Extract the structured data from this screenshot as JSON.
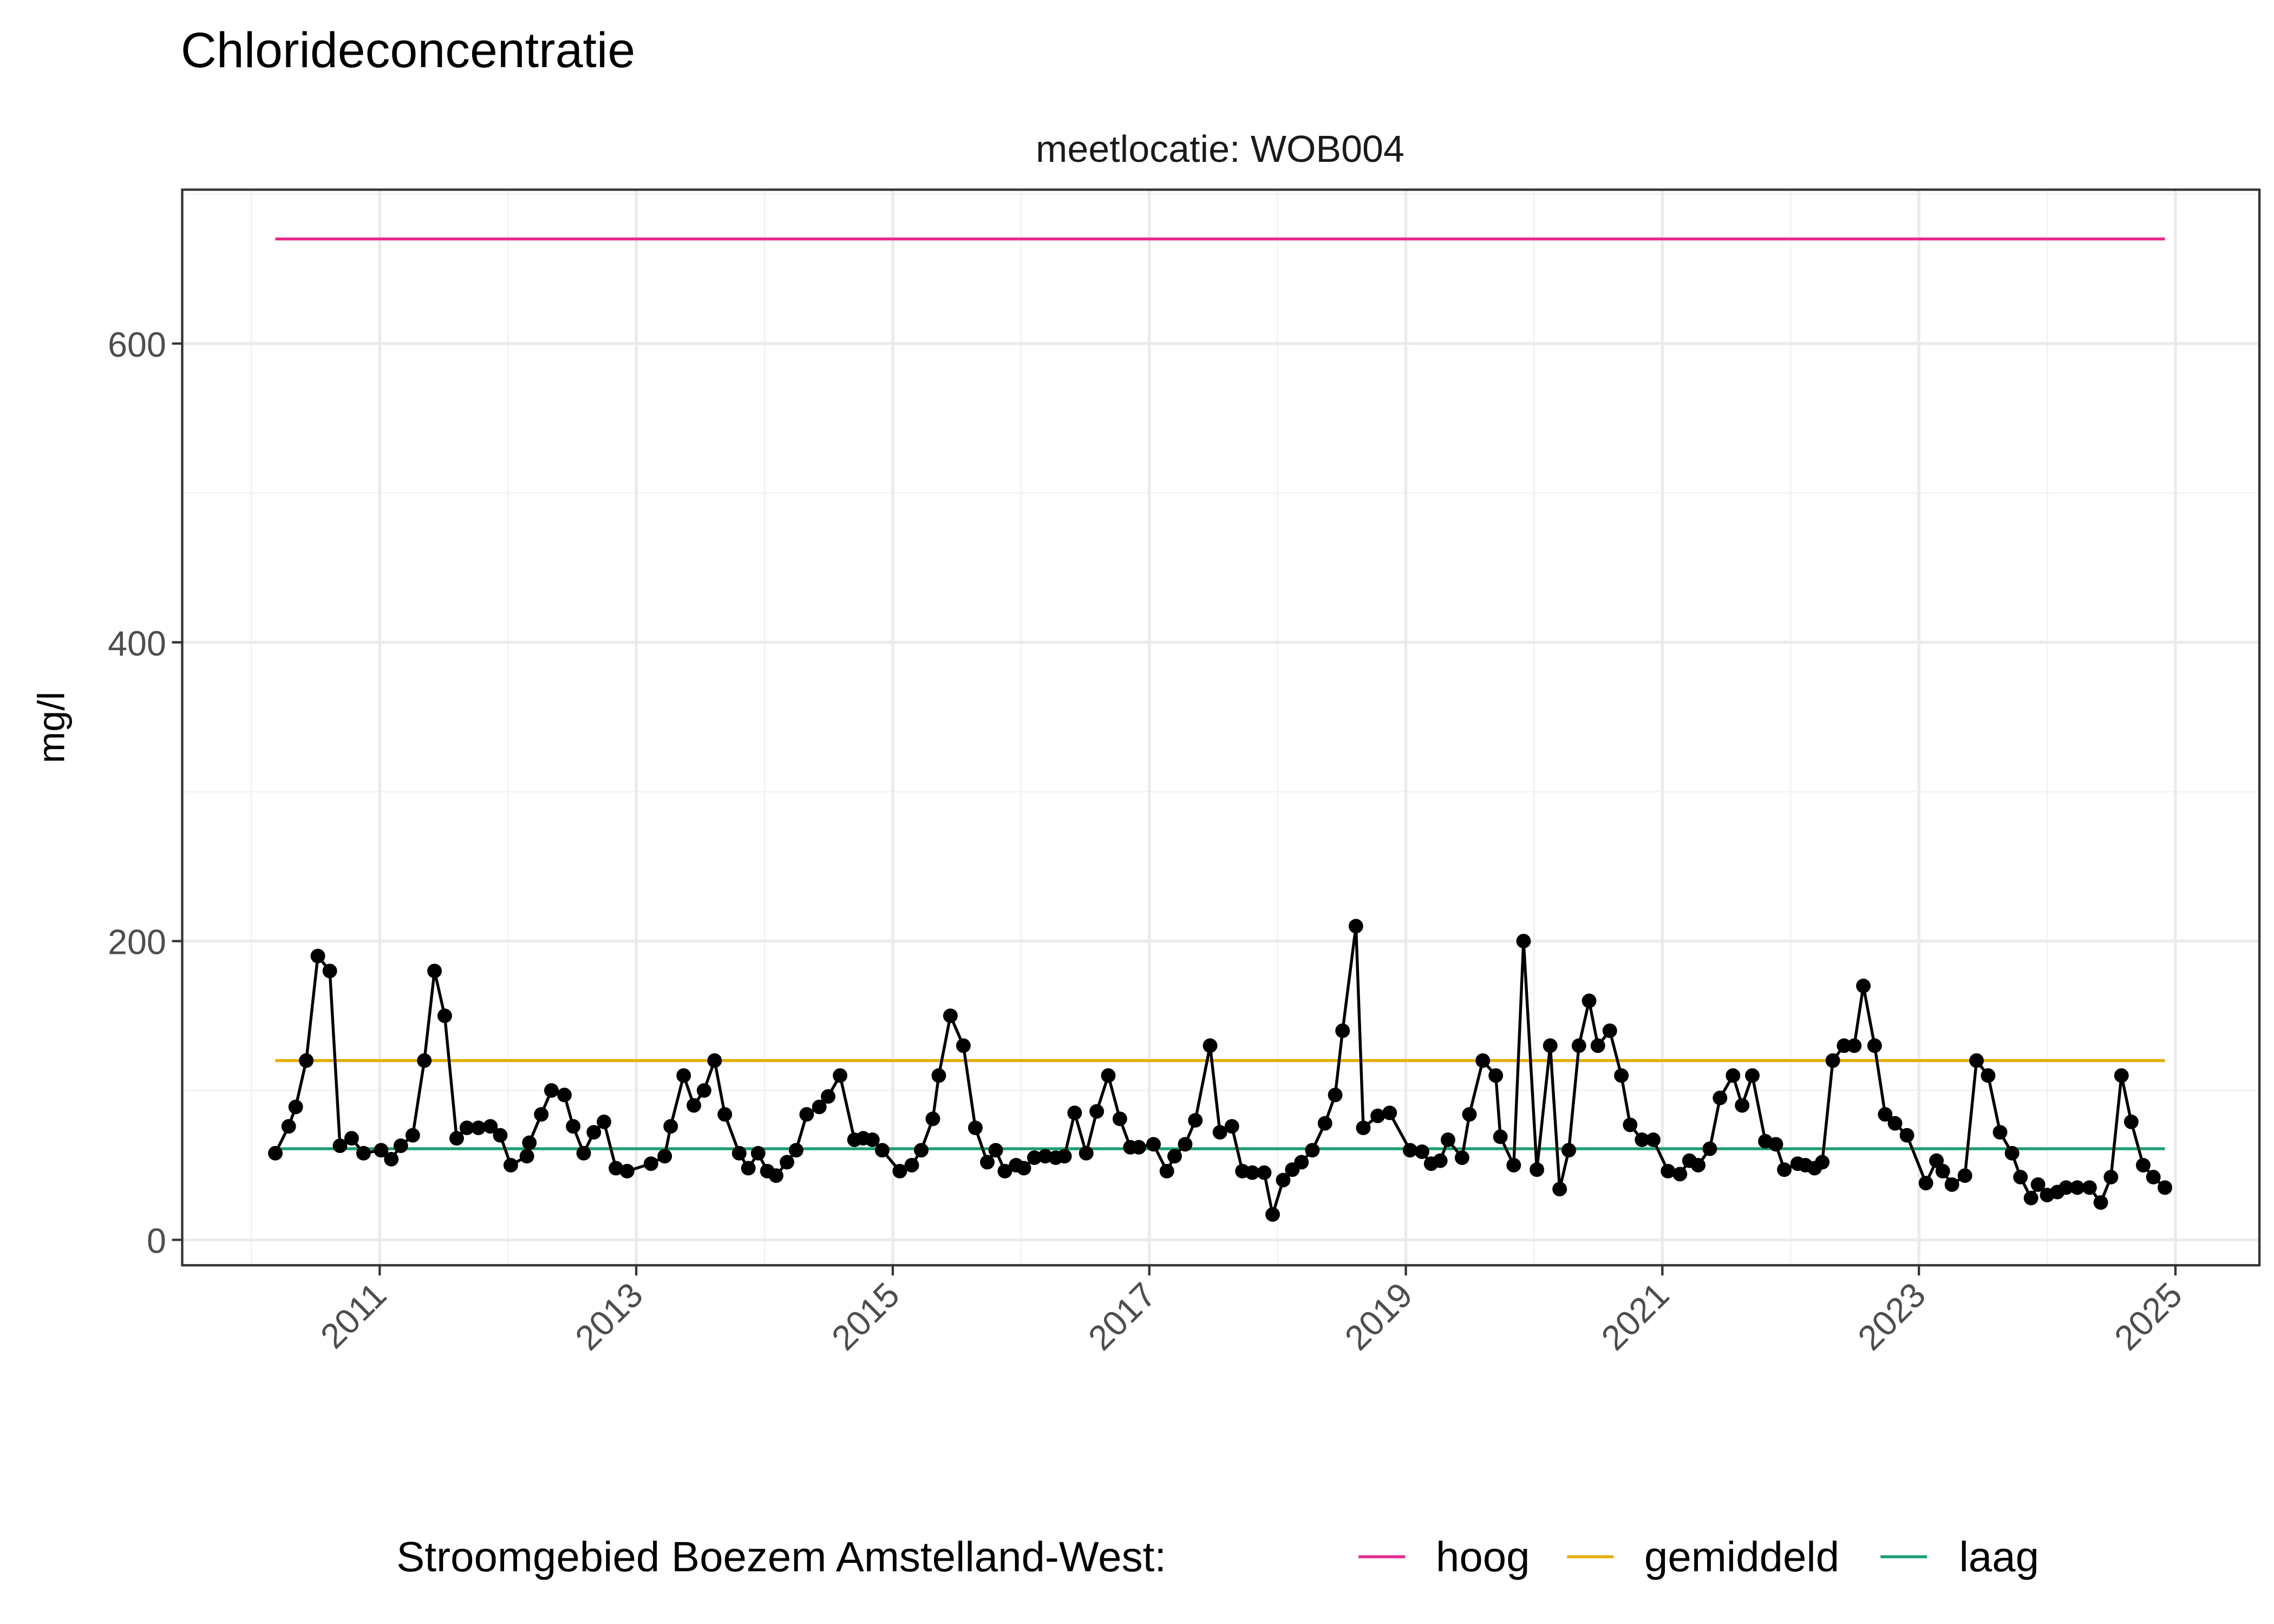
{
  "chart_data": {
    "type": "line",
    "title": "Chlorideconcentratie",
    "facet_label": "meetlocatie: WOB004",
    "xlabel": "",
    "ylabel": "mg/l",
    "xlim": [
      "2009-06-18",
      "2025-08-28"
    ],
    "ylim": [
      -17,
      703
    ],
    "x_ticks": [
      "2011",
      "2013",
      "2015",
      "2017",
      "2019",
      "2021",
      "2023",
      "2025"
    ],
    "y_ticks": [
      0,
      200,
      400,
      600
    ],
    "grid": true,
    "legend": {
      "title": "Stroomgebied Boezem Amstelland-West:",
      "position": "bottom",
      "entries": [
        "hoog",
        "gemiddeld",
        "laag"
      ]
    },
    "reference_lines": [
      {
        "name": "hoog",
        "value": 670,
        "color": "#E7298A"
      },
      {
        "name": "gemiddeld",
        "value": 120,
        "color": "#E6AB02"
      },
      {
        "name": "laag",
        "value": 61,
        "color": "#1B9E77"
      }
    ],
    "series_color": "#000000",
    "series": [
      {
        "x": [
          "2010-03-10",
          "2010-04-17",
          "2010-05-07",
          "2010-06-06",
          "2010-07-09",
          "2010-08-12",
          "2010-09-10",
          "2010-10-13",
          "2010-11-16",
          "2011-01-05",
          "2011-02-03",
          "2011-03-02",
          "2011-04-05",
          "2011-05-08",
          "2011-06-06",
          "2011-07-05",
          "2011-08-08",
          "2011-09-06",
          "2011-10-09",
          "2011-11-12",
          "2011-12-10",
          "2012-01-09",
          "2012-02-24",
          "2012-03-02",
          "2012-04-05",
          "2012-05-04",
          "2012-06-10",
          "2012-07-05",
          "2012-08-04",
          "2012-09-02",
          "2012-10-01",
          "2012-11-04",
          "2012-12-06",
          "2013-02-12",
          "2013-03-23",
          "2013-04-09",
          "2013-05-16",
          "2013-06-14",
          "2013-07-13",
          "2013-08-12",
          "2013-09-10",
          "2013-10-21",
          "2013-11-16",
          "2013-12-14",
          "2014-01-09",
          "2014-02-03",
          "2014-03-06",
          "2014-04-01",
          "2014-05-01",
          "2014-06-06",
          "2014-07-01",
          "2014-08-04",
          "2014-09-14",
          "2014-10-09",
          "2014-11-04",
          "2014-12-02",
          "2015-01-21",
          "2015-02-24",
          "2015-03-23",
          "2015-04-25",
          "2015-05-12",
          "2015-06-14",
          "2015-07-21",
          "2015-08-24",
          "2015-09-27",
          "2015-10-21",
          "2015-11-16",
          "2015-12-18",
          "2016-01-09",
          "2016-02-08",
          "2016-03-10",
          "2016-04-09",
          "2016-05-04",
          "2016-06-02",
          "2016-07-05",
          "2016-08-04",
          "2016-09-06",
          "2016-10-09",
          "2016-11-08",
          "2016-12-02",
          "2017-01-13",
          "2017-02-20",
          "2017-03-14",
          "2017-04-13",
          "2017-05-12",
          "2017-06-23",
          "2017-07-21",
          "2017-08-24",
          "2017-09-23",
          "2017-10-21",
          "2017-11-24",
          "2017-12-18",
          "2018-01-17",
          "2018-02-12",
          "2018-03-10",
          "2018-04-10",
          "2018-05-16",
          "2018-06-14",
          "2018-07-05",
          "2018-08-12",
          "2018-09-02",
          "2018-10-13",
          "2018-11-16",
          "2019-01-13",
          "2019-02-16",
          "2019-03-14",
          "2019-04-09",
          "2019-05-01",
          "2019-06-10",
          "2019-07-01",
          "2019-08-08",
          "2019-09-14",
          "2019-09-27",
          "2019-11-04",
          "2019-12-02",
          "2020-01-09",
          "2020-02-16",
          "2020-03-14",
          "2020-04-09",
          "2020-05-08",
          "2020-06-06",
          "2020-07-01",
          "2020-08-04",
          "2020-09-06",
          "2020-10-01",
          "2020-11-04",
          "2020-12-06",
          "2021-01-17",
          "2021-02-20",
          "2021-03-19",
          "2021-04-13",
          "2021-05-16",
          "2021-06-14",
          "2021-07-21",
          "2021-08-16",
          "2021-09-14",
          "2021-10-21",
          "2021-11-20",
          "2021-12-14",
          "2022-01-21",
          "2022-02-12",
          "2022-03-10",
          "2022-04-01",
          "2022-05-01",
          "2022-06-02",
          "2022-07-01",
          "2022-07-27",
          "2022-08-28",
          "2022-09-27",
          "2022-10-25",
          "2022-11-28",
          "2023-01-21",
          "2023-02-20",
          "2023-03-10",
          "2023-04-05",
          "2023-05-12",
          "2023-06-14",
          "2023-07-17",
          "2023-08-20",
          "2023-09-23",
          "2023-10-17",
          "2023-11-16",
          "2023-12-06",
          "2024-01-01",
          "2024-01-30",
          "2024-02-24",
          "2024-03-27",
          "2024-05-01",
          "2024-06-02",
          "2024-07-01",
          "2024-07-31",
          "2024-08-28",
          "2024-10-01",
          "2024-10-30",
          "2024-12-02"
        ],
        "y": [
          58,
          76,
          89,
          120,
          190,
          180,
          63,
          68,
          58,
          60,
          54,
          63,
          70,
          120,
          180,
          150,
          68,
          75,
          75,
          76,
          70,
          50,
          56,
          65,
          84,
          100,
          97,
          76,
          58,
          72,
          79,
          48,
          46,
          51,
          56,
          76,
          110,
          90,
          100,
          120,
          84,
          58,
          48,
          58,
          46,
          43,
          52,
          60,
          84,
          89,
          96,
          110,
          67,
          68,
          67,
          60,
          46,
          50,
          60,
          81,
          110,
          150,
          130,
          75,
          52,
          60,
          46,
          50,
          48,
          55,
          56,
          55,
          56,
          85,
          58,
          86,
          110,
          81,
          62,
          62,
          64,
          46,
          56,
          64,
          80,
          130,
          72,
          76,
          46,
          45,
          45,
          17,
          40,
          47,
          52,
          60,
          78,
          97,
          140,
          210,
          75,
          83,
          85,
          60,
          59,
          51,
          53,
          67,
          55,
          84,
          120,
          110,
          69,
          50,
          200,
          47,
          130,
          34,
          60,
          130,
          160,
          130,
          140,
          110,
          77,
          67,
          67,
          46,
          44,
          53,
          50,
          61,
          95,
          110,
          90,
          110,
          66,
          64,
          47,
          51,
          50,
          48,
          52,
          120,
          130,
          130,
          170,
          130,
          84,
          78,
          70,
          38,
          53,
          46,
          37,
          43,
          120,
          110,
          72,
          58,
          42,
          28,
          37,
          30,
          32,
          35,
          35,
          35,
          25,
          42,
          110,
          79,
          50,
          42,
          35
        ]
      }
    ]
  }
}
